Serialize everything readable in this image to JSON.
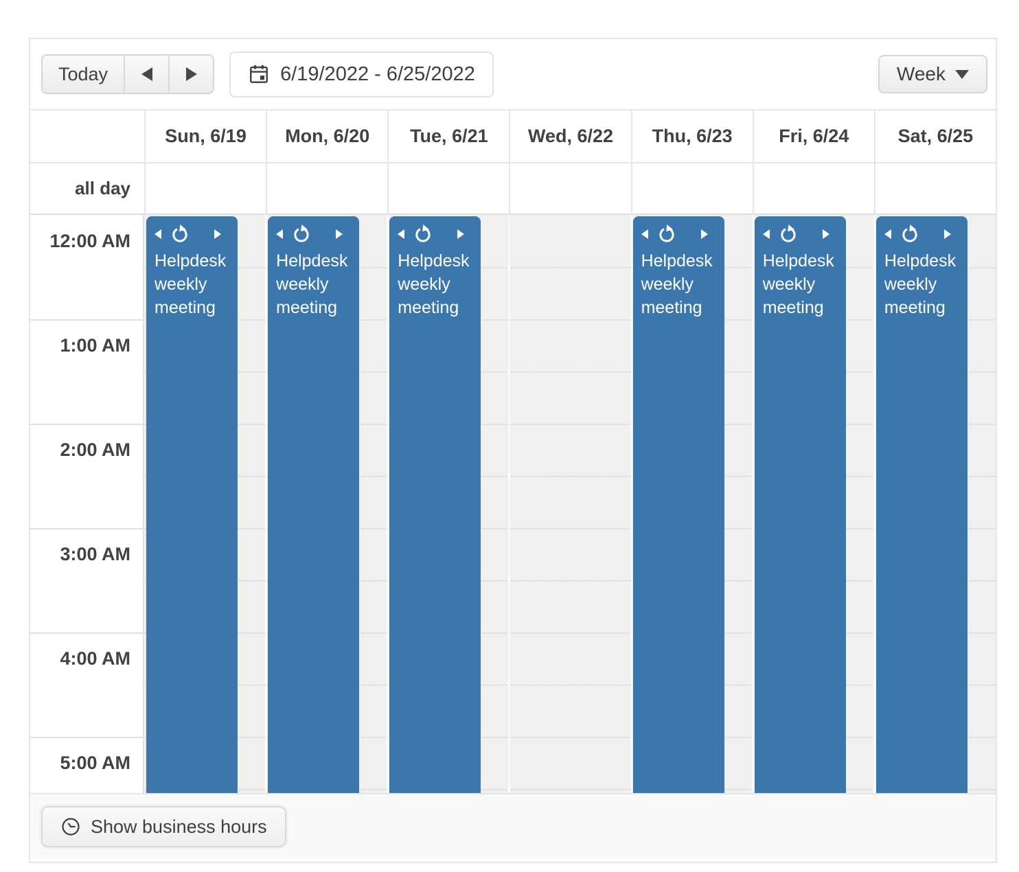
{
  "toolbar": {
    "today_label": "Today",
    "date_range": "6/19/2022 - 6/25/2022",
    "view_label": "Week"
  },
  "all_day_label": "all day",
  "days": [
    {
      "label": "Sun, 6/19",
      "has_event": true
    },
    {
      "label": "Mon, 6/20",
      "has_event": true
    },
    {
      "label": "Tue, 6/21",
      "has_event": true
    },
    {
      "label": "Wed, 6/22",
      "has_event": false
    },
    {
      "label": "Thu, 6/23",
      "has_event": true
    },
    {
      "label": "Fri, 6/24",
      "has_event": true
    },
    {
      "label": "Sat, 6/25",
      "has_event": true
    }
  ],
  "time_labels": [
    "12:00 AM",
    "1:00 AM",
    "2:00 AM",
    "3:00 AM",
    "4:00 AM",
    "5:00 AM"
  ],
  "event": {
    "title": "Helpdesk weekly meeting",
    "recurring": true
  },
  "footer": {
    "business_hours_label": "Show business hours"
  },
  "colors": {
    "event_bg": "#3b77ac",
    "event_text": "#ffffff",
    "nonwork_bg": "#f0f0f0",
    "grid_border": "#e2e2e2",
    "text": "#424242"
  }
}
